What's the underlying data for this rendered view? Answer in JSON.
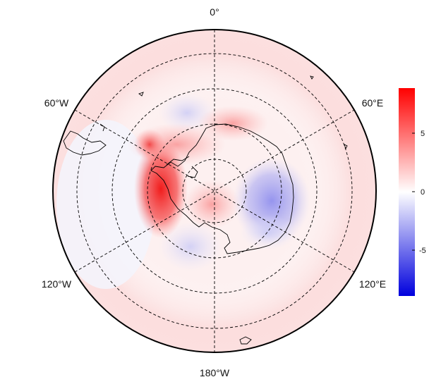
{
  "map": {
    "projection": "south-polar-stereographic",
    "longitude_labels": [
      "0°",
      "60°E",
      "120°E",
      "180°W",
      "120°W",
      "60°W"
    ],
    "colorbar": {
      "ticks": [
        "5",
        "0",
        "-5"
      ],
      "range": [
        -9,
        9
      ],
      "colors": {
        "max": "#ff0000",
        "mid": "#ffffff",
        "min": "#0000dd"
      }
    },
    "grid": "dashed"
  }
}
